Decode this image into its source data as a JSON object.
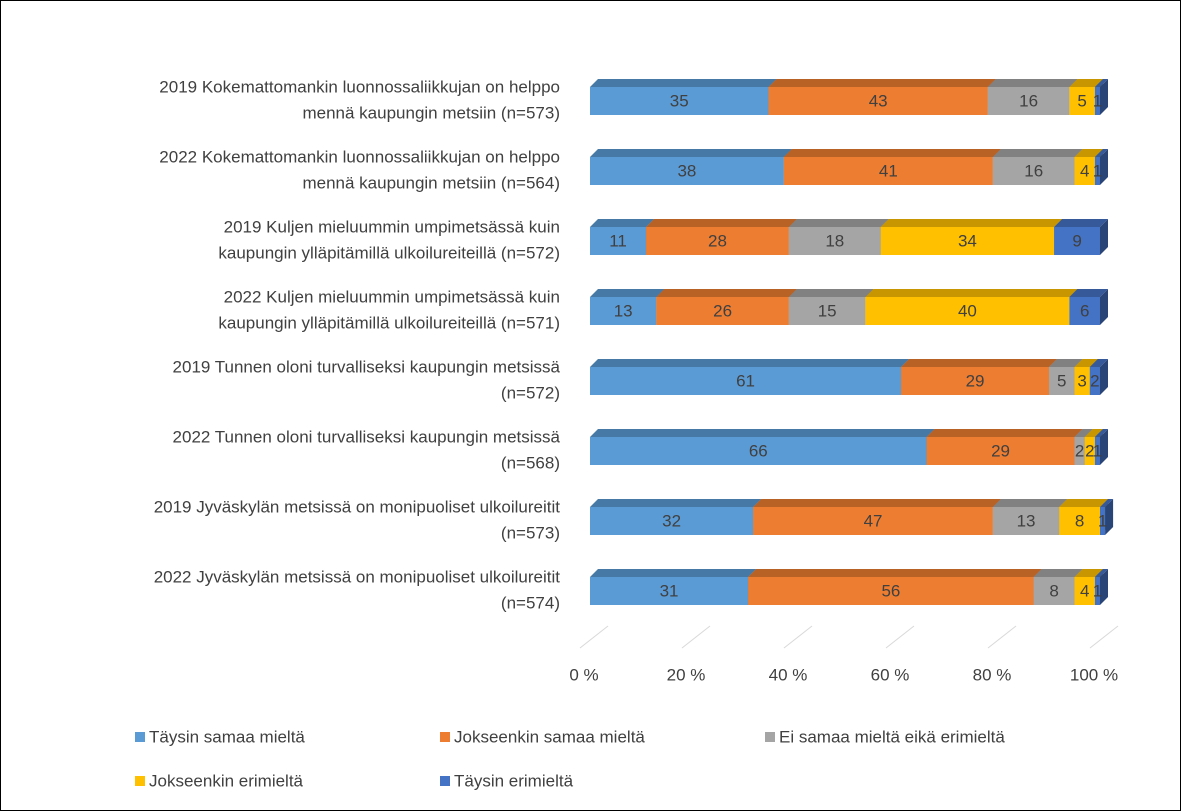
{
  "chart_data": {
    "type": "stacked_bar_horizontal",
    "categories": [
      [
        "2019 Kokemattomankin luonnossaliikkujan on helppo",
        "mennä kaupungin metsiin (n=573)"
      ],
      [
        "2022 Kokemattomankin luonnossaliikkujan on helppo",
        "mennä kaupungin metsiin (n=564)"
      ],
      [
        "2019 Kuljen mieluummin umpimetsässä kuin",
        "kaupungin ylläpitämillä ulkoilureiteillä (n=572)"
      ],
      [
        "2022 Kuljen mieluummin umpimetsässä kuin",
        "kaupungin ylläpitämillä ulkoilureiteillä (n=571)"
      ],
      [
        "2019 Tunnen oloni turvalliseksi kaupungin metsissä",
        "(n=572)"
      ],
      [
        "2022 Tunnen oloni turvalliseksi kaupungin metsissä",
        "(n=568)"
      ],
      [
        "2019 Jyväskylän metsissä on monipuoliset ulkoilureitit",
        "(n=573)"
      ],
      [
        "2022 Jyväskylän metsissä on monipuoliset ulkoilureitit",
        "(n=574)"
      ]
    ],
    "series": [
      {
        "name": "Täysin samaa mieltä",
        "color": "#5b9bd5",
        "values": [
          35,
          38,
          11,
          13,
          61,
          66,
          32,
          31
        ]
      },
      {
        "name": "Jokseenkin samaa mieltä",
        "color": "#ed7d31",
        "values": [
          43,
          41,
          28,
          26,
          29,
          29,
          47,
          56
        ]
      },
      {
        "name": "Ei samaa mieltä eikä erimieltä",
        "color": "#a5a5a5",
        "values": [
          16,
          16,
          18,
          15,
          5,
          2,
          13,
          8
        ]
      },
      {
        "name": "Jokseenkin erimieltä",
        "color": "#ffc000",
        "values": [
          5,
          4,
          34,
          40,
          3,
          2,
          8,
          4
        ]
      },
      {
        "name": "Täysin erimieltä",
        "color": "#4472c4",
        "values": [
          1,
          1,
          9,
          6,
          2,
          1,
          1,
          1
        ]
      }
    ],
    "xlim": [
      0,
      100
    ],
    "xticks": [
      {
        "value": 0,
        "label": "0 %"
      },
      {
        "value": 20,
        "label": "20 %"
      },
      {
        "value": 40,
        "label": "40 %"
      },
      {
        "value": 60,
        "label": "60 %"
      },
      {
        "value": 80,
        "label": "80 %"
      },
      {
        "value": 100,
        "label": "100 %"
      }
    ],
    "legend": "bottom"
  }
}
